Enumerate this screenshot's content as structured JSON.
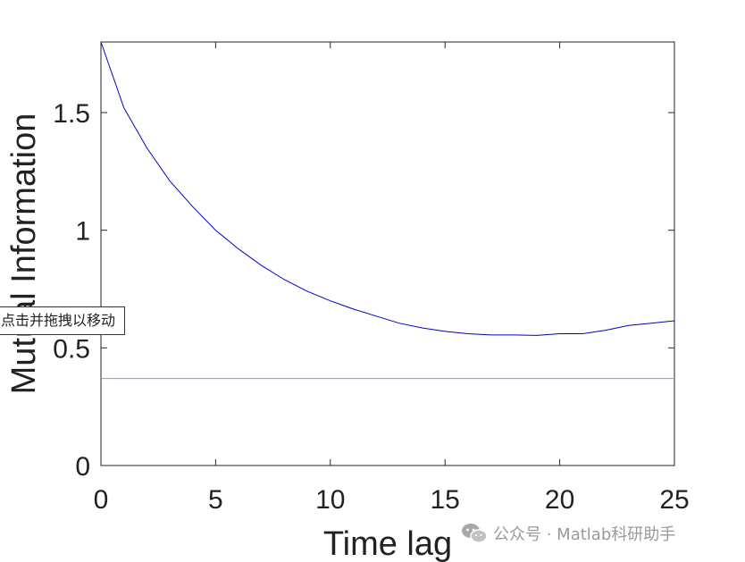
{
  "chart_data": {
    "type": "line",
    "title": "",
    "xlabel": "Time lag",
    "ylabel": "Mutual Information",
    "xlim": [
      0,
      25
    ],
    "ylim": [
      0,
      1.8
    ],
    "xticks": [
      0,
      5,
      10,
      15,
      20,
      25
    ],
    "xtick_labels": [
      "0",
      "5",
      "10",
      "15",
      "20",
      "25"
    ],
    "yticks": [
      0,
      0.5,
      1,
      1.5
    ],
    "ytick_labels": [
      "0",
      "0.5",
      "1",
      "1.5"
    ],
    "grid": false,
    "legend": "none",
    "series": [
      {
        "color": "#0000cd",
        "x": [
          0,
          1,
          2,
          3,
          4,
          5,
          6,
          7,
          8,
          9,
          10,
          11,
          12,
          13,
          14,
          15,
          16,
          17,
          18,
          19,
          20,
          21,
          22,
          23,
          24,
          25
        ],
        "y": [
          1.8,
          1.52,
          1.35,
          1.21,
          1.1,
          1.0,
          0.92,
          0.85,
          0.79,
          0.74,
          0.7,
          0.665,
          0.635,
          0.605,
          0.585,
          0.57,
          0.56,
          0.555,
          0.555,
          0.553,
          0.56,
          0.56,
          0.575,
          0.595,
          0.605,
          0.615
        ]
      },
      {
        "color": "#4da6ff",
        "x": [
          0,
          25
        ],
        "y": [
          0.37,
          0.37
        ]
      }
    ]
  },
  "tooltip": {
    "text": "点击并拖拽以移动"
  },
  "watermark": {
    "text": "公众号 · Matlab科研助手",
    "icon": "wechat-icon"
  }
}
